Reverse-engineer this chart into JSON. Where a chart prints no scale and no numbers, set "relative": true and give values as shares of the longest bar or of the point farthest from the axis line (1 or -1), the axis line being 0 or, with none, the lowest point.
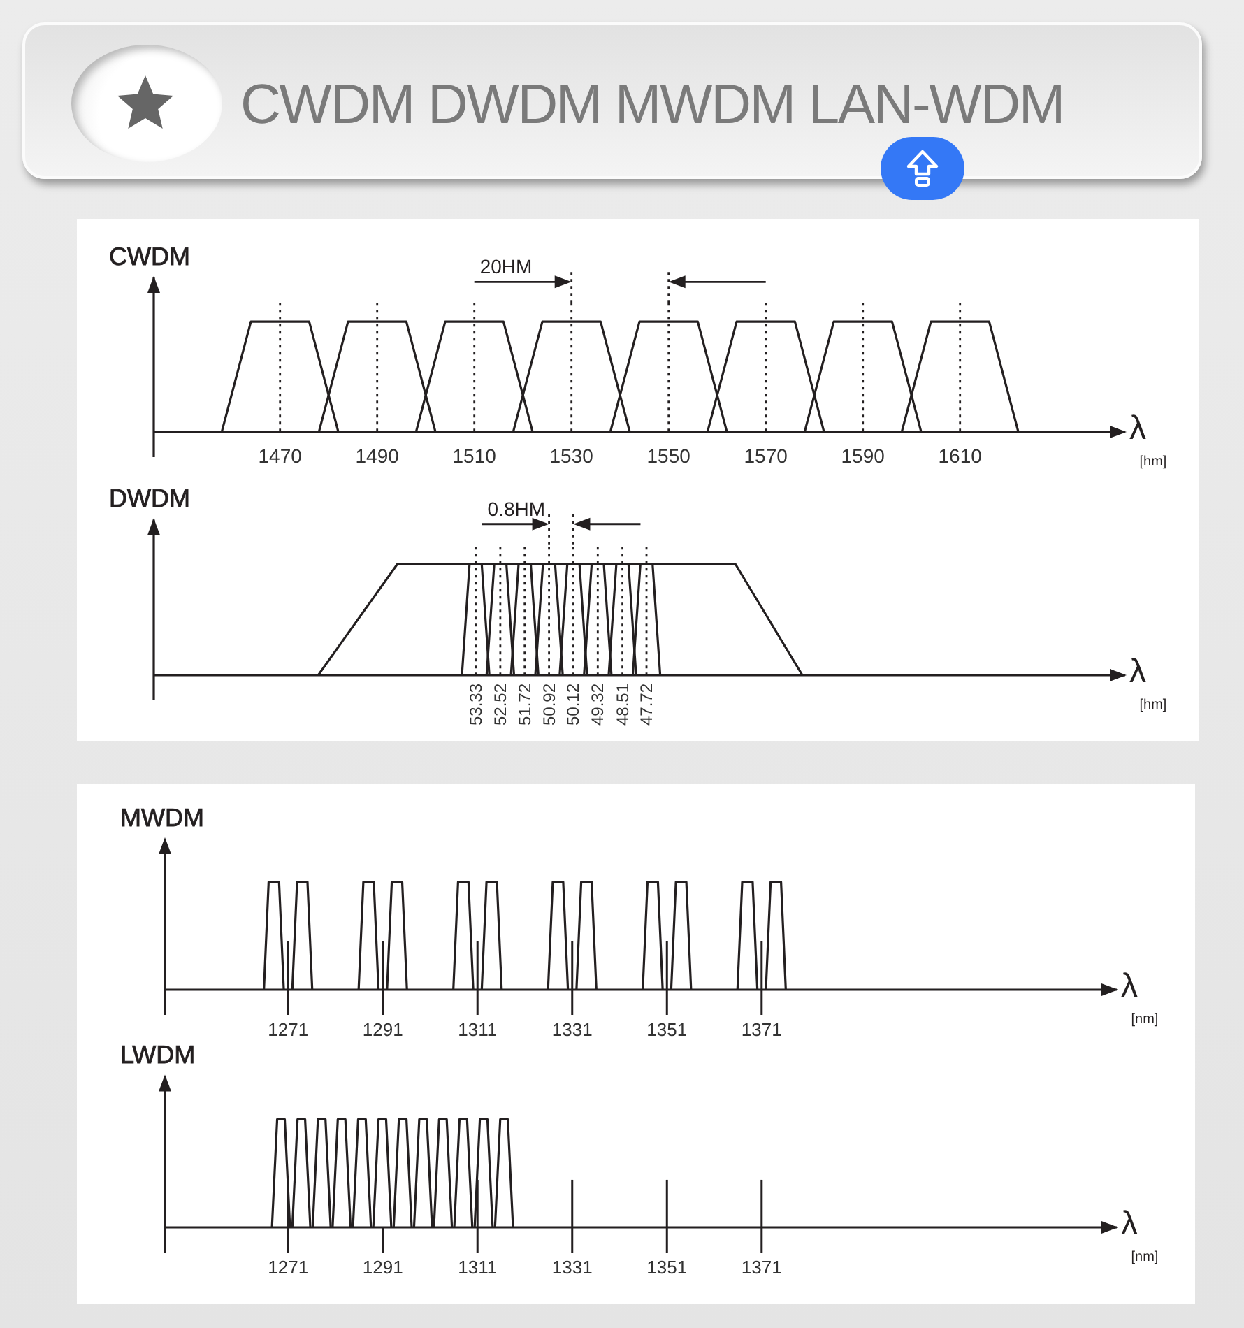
{
  "chart_data": [
    {
      "type": "other",
      "title": "CWDM DWDM MWDM LAN-WDM"
    },
    {
      "type": "line",
      "title": "CWDM",
      "xlabel": "λ [hm]",
      "relative": true,
      "xlim": [
        1444,
        1644
      ],
      "xticks": [
        1470,
        1490,
        1510,
        1530,
        1550,
        1570,
        1590,
        1610
      ],
      "grid": "x",
      "marker": "none",
      "annotations": [
        "20HM"
      ],
      "series": [
        {
          "color": "#231f20",
          "x": [
            1458,
            1464,
            1476,
            1482
          ],
          "values": [
            0,
            1,
            1,
            0
          ]
        },
        {
          "color": "#231f20",
          "x": [
            1478,
            1484,
            1496,
            1502
          ],
          "values": [
            0,
            1,
            1,
            0
          ]
        },
        {
          "color": "#231f20",
          "x": [
            1498,
            1504,
            1516,
            1522
          ],
          "values": [
            0,
            1,
            1,
            0
          ]
        },
        {
          "color": "#231f20",
          "x": [
            1518,
            1524,
            1536,
            1542
          ],
          "values": [
            0,
            1,
            1,
            0
          ]
        },
        {
          "color": "#231f20",
          "x": [
            1538,
            1544,
            1556,
            1562
          ],
          "values": [
            0,
            1,
            1,
            0
          ]
        },
        {
          "color": "#231f20",
          "x": [
            1558,
            1564,
            1576,
            1582
          ],
          "values": [
            0,
            1,
            1,
            0
          ]
        },
        {
          "color": "#231f20",
          "x": [
            1578,
            1584,
            1596,
            1602
          ],
          "values": [
            0,
            1,
            1,
            0
          ]
        },
        {
          "color": "#231f20",
          "x": [
            1598,
            1604,
            1616,
            1622
          ],
          "values": [
            0,
            1,
            1,
            0
          ]
        }
      ]
    },
    {
      "type": "line",
      "title": "DWDM",
      "xlabel": "λ [hm]",
      "relative": true,
      "xlim": [
        63.9,
        32.0
      ],
      "xticks": [
        53.33,
        52.52,
        51.72,
        50.92,
        50.12,
        49.32,
        48.51,
        47.72
      ],
      "grid": "x",
      "marker": "none",
      "annotations": [
        "0.8HM"
      ],
      "series": [
        {
          "color": "#231f20",
          "x": [
            58.5,
            55.9,
            44.8,
            42.6
          ],
          "values": [
            0,
            1,
            1,
            0
          ]
        },
        {
          "color": "#231f20",
          "x": [
            53.78,
            53.53,
            53.13,
            52.88
          ],
          "values": [
            0,
            1,
            1,
            0
          ]
        },
        {
          "color": "#231f20",
          "x": [
            52.97,
            52.72,
            52.32,
            52.07
          ],
          "values": [
            0,
            1,
            1,
            0
          ]
        },
        {
          "color": "#231f20",
          "x": [
            52.17,
            51.92,
            51.52,
            51.27
          ],
          "values": [
            0,
            1,
            1,
            0
          ]
        },
        {
          "color": "#231f20",
          "x": [
            51.37,
            51.12,
            50.72,
            50.47
          ],
          "values": [
            0,
            1,
            1,
            0
          ]
        },
        {
          "color": "#231f20",
          "x": [
            50.57,
            50.32,
            49.92,
            49.67
          ],
          "values": [
            0,
            1,
            1,
            0
          ]
        },
        {
          "color": "#231f20",
          "x": [
            49.77,
            49.52,
            49.12,
            48.87
          ],
          "values": [
            0,
            1,
            1,
            0
          ]
        },
        {
          "color": "#231f20",
          "x": [
            48.96,
            48.71,
            48.31,
            48.06
          ],
          "values": [
            0,
            1,
            1,
            0
          ]
        },
        {
          "color": "#231f20",
          "x": [
            48.17,
            47.92,
            47.52,
            47.27
          ],
          "values": [
            0,
            1,
            1,
            0
          ]
        }
      ]
    },
    {
      "type": "line",
      "title": "MWDM",
      "xlabel": "λ [nm]",
      "relative": true,
      "xlim": [
        1245,
        1446
      ],
      "xticks": [
        1271,
        1291,
        1311,
        1331,
        1351,
        1371
      ],
      "marker": "none",
      "ref_lines": [
        {
          "axis": "x",
          "value": 1271
        },
        {
          "axis": "x",
          "value": 1291
        },
        {
          "axis": "x",
          "value": 1311
        },
        {
          "axis": "x",
          "value": 1331
        },
        {
          "axis": "x",
          "value": 1351
        },
        {
          "axis": "x",
          "value": 1371
        }
      ],
      "series": [
        {
          "color": "#231f20",
          "x": [
            1265.9,
            1266.9,
            1269.1,
            1270.1
          ],
          "values": [
            0,
            1,
            1,
            0
          ]
        },
        {
          "color": "#231f20",
          "x": [
            1271.9,
            1272.9,
            1275.1,
            1276.1
          ],
          "values": [
            0,
            1,
            1,
            0
          ]
        },
        {
          "color": "#231f20",
          "x": [
            1285.9,
            1286.9,
            1289.1,
            1290.1
          ],
          "values": [
            0,
            1,
            1,
            0
          ]
        },
        {
          "color": "#231f20",
          "x": [
            1291.9,
            1292.9,
            1295.1,
            1296.1
          ],
          "values": [
            0,
            1,
            1,
            0
          ]
        },
        {
          "color": "#231f20",
          "x": [
            1305.9,
            1306.9,
            1309.1,
            1310.1
          ],
          "values": [
            0,
            1,
            1,
            0
          ]
        },
        {
          "color": "#231f20",
          "x": [
            1311.9,
            1312.9,
            1315.1,
            1316.1
          ],
          "values": [
            0,
            1,
            1,
            0
          ]
        },
        {
          "color": "#231f20",
          "x": [
            1325.9,
            1326.9,
            1329.1,
            1330.1
          ],
          "values": [
            0,
            1,
            1,
            0
          ]
        },
        {
          "color": "#231f20",
          "x": [
            1331.9,
            1332.9,
            1335.1,
            1336.1
          ],
          "values": [
            0,
            1,
            1,
            0
          ]
        },
        {
          "color": "#231f20",
          "x": [
            1345.9,
            1346.9,
            1349.1,
            1350.1
          ],
          "values": [
            0,
            1,
            1,
            0
          ]
        },
        {
          "color": "#231f20",
          "x": [
            1351.9,
            1352.9,
            1355.1,
            1356.1
          ],
          "values": [
            0,
            1,
            1,
            0
          ]
        },
        {
          "color": "#231f20",
          "x": [
            1365.9,
            1366.9,
            1369.1,
            1370.1
          ],
          "values": [
            0,
            1,
            1,
            0
          ]
        },
        {
          "color": "#231f20",
          "x": [
            1371.9,
            1372.9,
            1375.1,
            1376.1
          ],
          "values": [
            0,
            1,
            1,
            0
          ]
        }
      ]
    },
    {
      "type": "line",
      "title": "LWDM",
      "xlabel": "λ [nm]",
      "relative": true,
      "xlim": [
        1245,
        1446
      ],
      "xticks": [
        1271,
        1291,
        1311,
        1331,
        1351,
        1371
      ],
      "marker": "none",
      "ref_lines": [
        {
          "axis": "x",
          "value": 1271
        },
        {
          "axis": "x",
          "value": 1311
        },
        {
          "axis": "x",
          "value": 1331
        },
        {
          "axis": "x",
          "value": 1351
        },
        {
          "axis": "x",
          "value": 1371
        }
      ],
      "series": [
        {
          "color": "#231f20",
          "x": [
            1267.6,
            1268.7,
            1270.3,
            1271.4
          ],
          "values": [
            0,
            1,
            1,
            0
          ]
        },
        {
          "color": "#231f20",
          "x": [
            1271.9,
            1273.0,
            1274.6,
            1275.7
          ],
          "values": [
            0,
            1,
            1,
            0
          ]
        },
        {
          "color": "#231f20",
          "x": [
            1276.2,
            1277.3,
            1278.9,
            1280.0
          ],
          "values": [
            0,
            1,
            1,
            0
          ]
        },
        {
          "color": "#231f20",
          "x": [
            1280.4,
            1281.5,
            1283.1,
            1284.2
          ],
          "values": [
            0,
            1,
            1,
            0
          ]
        },
        {
          "color": "#231f20",
          "x": [
            1284.7,
            1285.8,
            1287.4,
            1288.5
          ],
          "values": [
            0,
            1,
            1,
            0
          ]
        },
        {
          "color": "#231f20",
          "x": [
            1289.0,
            1290.1,
            1291.7,
            1292.8
          ],
          "values": [
            0,
            1,
            1,
            0
          ]
        },
        {
          "color": "#231f20",
          "x": [
            1293.3,
            1294.4,
            1296.0,
            1297.1
          ],
          "values": [
            0,
            1,
            1,
            0
          ]
        },
        {
          "color": "#231f20",
          "x": [
            1297.6,
            1298.7,
            1300.3,
            1301.4
          ],
          "values": [
            0,
            1,
            1,
            0
          ]
        },
        {
          "color": "#231f20",
          "x": [
            1301.8,
            1302.9,
            1304.5,
            1305.6
          ],
          "values": [
            0,
            1,
            1,
            0
          ]
        },
        {
          "color": "#231f20",
          "x": [
            1306.1,
            1307.2,
            1308.8,
            1309.9
          ],
          "values": [
            0,
            1,
            1,
            0
          ]
        },
        {
          "color": "#231f20",
          "x": [
            1310.4,
            1311.5,
            1313.1,
            1314.2
          ],
          "values": [
            0,
            1,
            1,
            0
          ]
        },
        {
          "color": "#231f20",
          "x": [
            1314.7,
            1315.8,
            1317.4,
            1318.5
          ],
          "values": [
            0,
            1,
            1,
            0
          ]
        }
      ]
    }
  ]
}
